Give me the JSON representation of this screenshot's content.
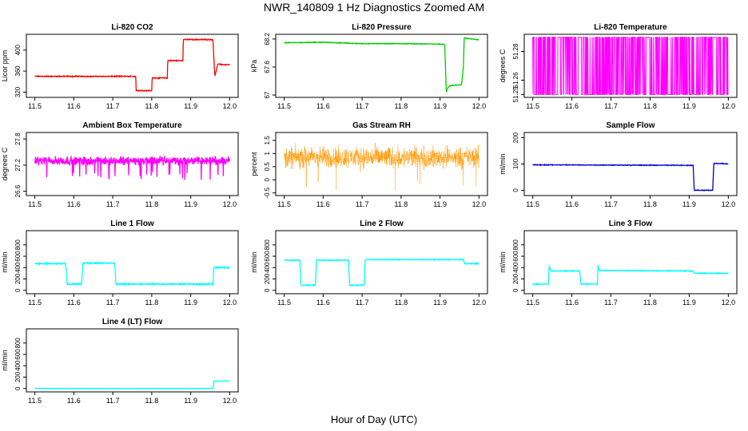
{
  "figure": {
    "title": "NWR_140809  1 Hz Diagnostics Zoomed AM",
    "xlabel": "Hour of Day (UTC)"
  },
  "chart_data": [
    {
      "type": "line",
      "title": "Li-820 CO2",
      "ylabel": "Licor ppm",
      "color": "#ff0000",
      "xlim": [
        11.5,
        12.0
      ],
      "ylim": [
        310,
        430
      ],
      "yticks": [
        320,
        360,
        400
      ],
      "grid": false,
      "xticks": [
        11.5,
        11.6,
        11.7,
        11.8,
        11.9,
        12.0
      ],
      "series": [
        {
          "points": [
            [
              11.5,
              350
            ],
            [
              11.759,
              350
            ],
            [
              11.76,
              323
            ],
            [
              11.8,
              323
            ],
            [
              11.801,
              347
            ],
            [
              11.84,
              347
            ],
            [
              11.841,
              380
            ],
            [
              11.88,
              380
            ],
            [
              11.881,
              420
            ],
            [
              11.957,
              420
            ],
            [
              11.962,
              350
            ],
            [
              11.97,
              374
            ],
            [
              11.985,
              372
            ],
            [
              12.0,
              372
            ]
          ],
          "noise": 1
        }
      ]
    },
    {
      "type": "line",
      "title": "Li-820 Pressure",
      "ylabel": "kPa",
      "color": "#00cc00",
      "xlim": [
        11.5,
        12.0
      ],
      "ylim": [
        66.95,
        68.3
      ],
      "yticks": [
        67.0,
        67.6,
        68.2
      ],
      "grid": false,
      "xticks": [
        11.5,
        11.6,
        11.7,
        11.8,
        11.9,
        12.0
      ],
      "series": [
        {
          "points": [
            [
              11.5,
              68.12
            ],
            [
              11.6,
              68.13
            ],
            [
              11.7,
              68.1
            ],
            [
              11.8,
              68.1
            ],
            [
              11.9,
              68.09
            ],
            [
              11.912,
              68.08
            ],
            [
              11.916,
              67.06
            ],
            [
              11.92,
              67.15
            ],
            [
              11.925,
              67.2
            ],
            [
              11.955,
              67.22
            ],
            [
              11.96,
              67.6
            ],
            [
              11.962,
              68.22
            ],
            [
              11.98,
              68.2
            ],
            [
              12.0,
              68.18
            ]
          ],
          "noise": 0.008
        }
      ]
    },
    {
      "type": "line",
      "title": "Li-820 Temperature",
      "ylabel": "degrees C",
      "color": "#ff00ff",
      "xlim": [
        11.5,
        12.0
      ],
      "ylim": [
        51.248,
        51.292
      ],
      "yticks": [
        51.25,
        51.26,
        51.28
      ],
      "grid": false,
      "xticks": [
        11.5,
        11.6,
        11.7,
        11.8,
        11.9,
        12.0
      ],
      "series": [
        {
          "points": [
            [
              11.5,
              51.29
            ],
            [
              12.0,
              51.29
            ]
          ],
          "levels": [
            51.25,
            51.29
          ],
          "noise": 0
        }
      ]
    },
    {
      "type": "line",
      "title": "Ambient Box Temperature",
      "ylabel": "degrees C",
      "color": "#ff00ff",
      "xlim": [
        11.5,
        12.0
      ],
      "ylim": [
        26.5,
        27.95
      ],
      "yticks": [
        26.6,
        27.2,
        27.8
      ],
      "grid": false,
      "xticks": [
        11.5,
        11.6,
        11.7,
        11.8,
        11.9,
        12.0
      ],
      "series": [
        {
          "points": [
            [
              11.5,
              27.3
            ],
            [
              12.0,
              27.3
            ]
          ],
          "noise": 0.12
        }
      ]
    },
    {
      "type": "scatter",
      "title": "Gas Stream RH",
      "ylabel": "percent",
      "color": "#ff9900",
      "xlim": [
        11.5,
        12.0
      ],
      "ylim": [
        -0.6,
        1.8
      ],
      "yticks": [
        -0.5,
        0.0,
        0.5,
        1.0,
        1.5
      ],
      "grid": false,
      "xticks": [
        11.5,
        11.6,
        11.7,
        11.8,
        11.9,
        12.0
      ],
      "series": [
        {
          "points": [
            [
              11.5,
              0.85
            ],
            [
              12.0,
              0.85
            ]
          ],
          "noise": 0.3
        }
      ]
    },
    {
      "type": "line",
      "title": "Sample Flow",
      "ylabel": "ml/min",
      "color": "#0000cc",
      "xlim": [
        11.5,
        12.0
      ],
      "ylim": [
        -20,
        220
      ],
      "yticks": [
        0,
        100,
        200
      ],
      "grid": false,
      "xticks": [
        11.5,
        11.6,
        11.7,
        11.8,
        11.9,
        12.0
      ],
      "series": [
        {
          "points": [
            [
              11.5,
              97
            ],
            [
              11.7,
              96
            ],
            [
              11.91,
              95
            ],
            [
              11.913,
              0
            ],
            [
              11.96,
              0
            ],
            [
              11.963,
              102
            ],
            [
              11.98,
              102
            ],
            [
              12.0,
              100
            ]
          ],
          "noise": 1.5
        }
      ]
    },
    {
      "type": "line",
      "title": "Line 1 Flow",
      "ylabel": "ml/min",
      "color": "#00ffff",
      "xlim": [
        11.5,
        12.0
      ],
      "ylim": [
        -60,
        1050
      ],
      "yticks": [
        0,
        200,
        400,
        600,
        800
      ],
      "grid": false,
      "xticks": [
        11.5,
        11.6,
        11.7,
        11.8,
        11.9,
        12.0
      ],
      "series": [
        {
          "points": [
            [
              11.5,
              470
            ],
            [
              11.579,
              470
            ],
            [
              11.583,
              110
            ],
            [
              11.62,
              110
            ],
            [
              11.623,
              480
            ],
            [
              11.705,
              480
            ],
            [
              11.708,
              110
            ],
            [
              11.957,
              110
            ],
            [
              11.96,
              400
            ],
            [
              12.0,
              400
            ]
          ],
          "noise": 12
        }
      ]
    },
    {
      "type": "line",
      "title": "Line 2 Flow",
      "ylabel": "ml/min",
      "color": "#00ffff",
      "xlim": [
        11.5,
        12.0
      ],
      "ylim": [
        -60,
        1050
      ],
      "yticks": [
        0,
        200,
        400,
        600,
        800
      ],
      "grid": false,
      "xticks": [
        11.5,
        11.6,
        11.7,
        11.8,
        11.9,
        12.0
      ],
      "series": [
        {
          "points": [
            [
              11.5,
              530
            ],
            [
              11.54,
              530
            ],
            [
              11.543,
              90
            ],
            [
              11.58,
              90
            ],
            [
              11.583,
              530
            ],
            [
              11.665,
              530
            ],
            [
              11.668,
              90
            ],
            [
              11.705,
              90
            ],
            [
              11.708,
              540
            ],
            [
              11.96,
              540
            ],
            [
              11.963,
              470
            ],
            [
              12.0,
              470
            ]
          ],
          "noise": 8
        }
      ]
    },
    {
      "type": "line",
      "title": "Line 3 Flow",
      "ylabel": "ml/min",
      "color": "#00ffff",
      "xlim": [
        11.5,
        12.0
      ],
      "ylim": [
        -60,
        1050
      ],
      "yticks": [
        0,
        200,
        400,
        600,
        800
      ],
      "grid": false,
      "xticks": [
        11.5,
        11.6,
        11.7,
        11.8,
        11.9,
        12.0
      ],
      "series": [
        {
          "points": [
            [
              11.5,
              110
            ],
            [
              11.54,
              110
            ],
            [
              11.542,
              430
            ],
            [
              11.546,
              340
            ],
            [
              11.62,
              340
            ],
            [
              11.623,
              110
            ],
            [
              11.665,
              110
            ],
            [
              11.667,
              440
            ],
            [
              11.67,
              350
            ],
            [
              11.91,
              340
            ],
            [
              11.913,
              300
            ],
            [
              12.0,
              300
            ]
          ],
          "noise": 8
        }
      ]
    },
    {
      "type": "line",
      "title": "Line 4 (LT) Flow",
      "ylabel": "ml/min",
      "color": "#00ffff",
      "xlim": [
        11.5,
        12.0
      ],
      "ylim": [
        -60,
        1050
      ],
      "yticks": [
        0,
        200,
        400,
        600,
        800
      ],
      "grid": false,
      "xticks": [
        11.5,
        11.6,
        11.7,
        11.8,
        11.9,
        12.0
      ],
      "series": [
        {
          "points": [
            [
              11.5,
              0
            ],
            [
              11.957,
              0
            ],
            [
              11.96,
              130
            ],
            [
              12.0,
              130
            ]
          ],
          "noise": 3
        }
      ]
    }
  ]
}
